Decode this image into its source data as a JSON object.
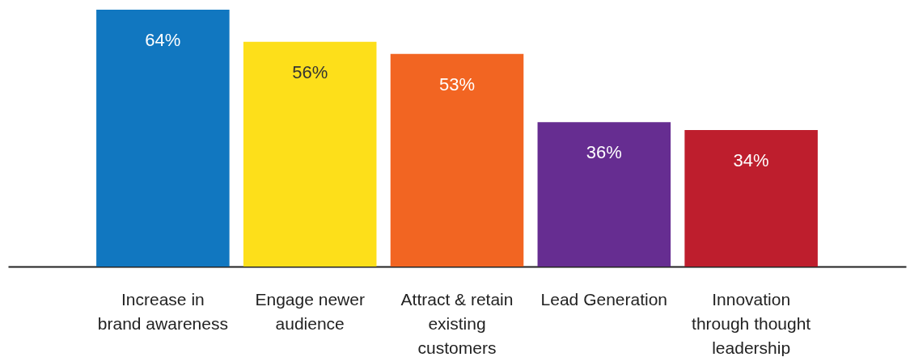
{
  "chart_data": {
    "type": "bar",
    "categories": [
      "Increase in brand awareness",
      "Engage newer audience",
      "Attract & retain existing customers",
      "Lead Generation",
      "Innovation through thought leadership"
    ],
    "values": [
      64,
      56,
      53,
      36,
      34
    ],
    "colors": [
      "#1177c0",
      "#fddf1a",
      "#f26522",
      "#662d91",
      "#be1e2d"
    ],
    "value_labels": [
      "64%",
      "56%",
      "53%",
      "36%",
      "34%"
    ],
    "grid": false,
    "legend": false
  }
}
